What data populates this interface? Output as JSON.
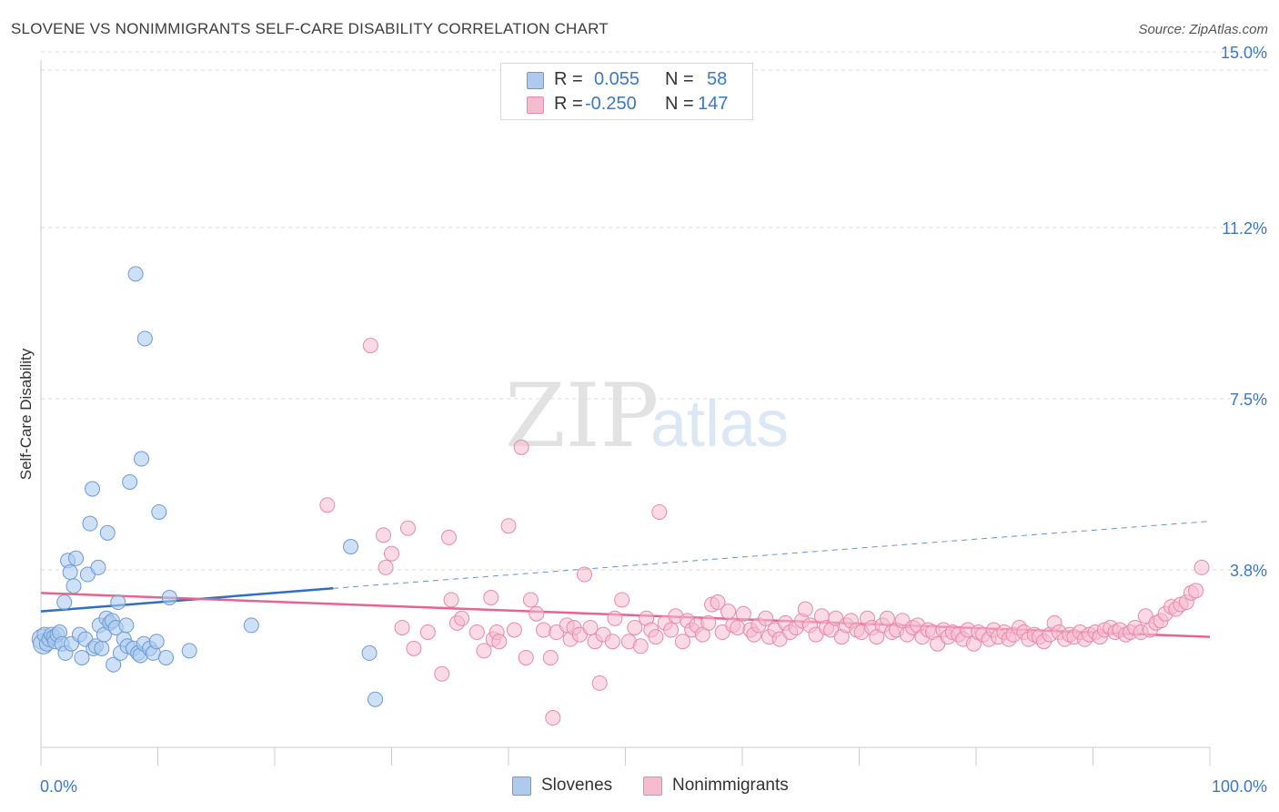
{
  "title": "SLOVENE VS NONIMMIGRANTS SELF-CARE DISABILITY CORRELATION CHART",
  "source": "Source: ZipAtlas.com",
  "watermark": {
    "zip": "ZIP",
    "atlas": "atlas"
  },
  "legend_top": {
    "rows": [
      {
        "r_label": "R =",
        "r_value": "0.055",
        "n_label": "N =",
        "n_value": "58"
      },
      {
        "r_label": "R =",
        "r_value": "-0.250",
        "n_label": "N =",
        "n_value": "147"
      }
    ]
  },
  "legend_bottom": {
    "series_a": "Slovenes",
    "series_b": "Nonimmigrants"
  },
  "colors": {
    "blue_fill": "#aecbef",
    "blue_stroke": "#6b9ad6",
    "blue_line": "#2e6fc5",
    "pink_fill": "#f5bcd0",
    "pink_stroke": "#e889a8",
    "pink_line": "#e8648f",
    "axis_text": "#3a78c9",
    "grid": "#dddddd"
  },
  "chart_data": {
    "type": "scatter",
    "title": "SLOVENE VS NONIMMIGRANTS SELF-CARE DISABILITY CORRELATION CHART",
    "xlabel": "",
    "ylabel": "Self-Care Disability",
    "xlim": [
      0,
      100
    ],
    "ylim": [
      0,
      15.5
    ],
    "x_tick_labels": [
      "0.0%",
      "100.0%"
    ],
    "y_ticks": [
      3.8,
      7.5,
      11.2,
      15.0
    ],
    "y_tick_labels": [
      "3.8%",
      "7.5%",
      "11.2%",
      "15.0%"
    ],
    "grid": true,
    "legend_position": "top-center",
    "series": [
      {
        "name": "Slovenes",
        "color": "#aecbef",
        "r": 0.055,
        "n": 58,
        "trend": {
          "x": [
            0,
            25
          ],
          "y": [
            2.9,
            3.4
          ],
          "extended_x": [
            25,
            100
          ],
          "extended_y": [
            3.4,
            4.85
          ]
        },
        "points": [
          [
            0.1,
            2.3
          ],
          [
            0.2,
            2.2
          ],
          [
            0.3,
            2.4
          ],
          [
            0.5,
            2.2
          ],
          [
            0.7,
            2.3
          ],
          [
            0.9,
            2.4
          ],
          [
            1.1,
            2.35
          ],
          [
            1.2,
            2.25
          ],
          [
            1.4,
            2.4
          ],
          [
            1.6,
            2.45
          ],
          [
            1.8,
            2.2
          ],
          [
            2.0,
            3.1
          ],
          [
            2.1,
            2.0
          ],
          [
            2.3,
            4.0
          ],
          [
            2.5,
            3.75
          ],
          [
            2.6,
            2.2
          ],
          [
            2.8,
            3.45
          ],
          [
            3.0,
            4.05
          ],
          [
            3.3,
            2.4
          ],
          [
            3.5,
            1.9
          ],
          [
            3.8,
            2.3
          ],
          [
            4.0,
            3.7
          ],
          [
            4.2,
            4.8
          ],
          [
            4.4,
            5.55
          ],
          [
            4.5,
            2.1
          ],
          [
            4.7,
            2.15
          ],
          [
            4.9,
            3.85
          ],
          [
            5.0,
            2.6
          ],
          [
            5.2,
            2.1
          ],
          [
            5.4,
            2.4
          ],
          [
            5.6,
            2.75
          ],
          [
            5.7,
            4.6
          ],
          [
            5.9,
            2.65
          ],
          [
            6.1,
            2.7
          ],
          [
            6.2,
            1.75
          ],
          [
            6.4,
            2.55
          ],
          [
            6.6,
            3.1
          ],
          [
            6.8,
            2.0
          ],
          [
            7.1,
            2.3
          ],
          [
            7.3,
            2.6
          ],
          [
            7.4,
            2.15
          ],
          [
            7.6,
            5.7
          ],
          [
            7.9,
            2.1
          ],
          [
            8.1,
            10.2
          ],
          [
            8.3,
            2.0
          ],
          [
            8.5,
            1.95
          ],
          [
            8.6,
            6.2
          ],
          [
            8.8,
            2.2
          ],
          [
            8.9,
            8.8
          ],
          [
            9.3,
            2.1
          ],
          [
            9.6,
            2.0
          ],
          [
            9.9,
            2.25
          ],
          [
            10.1,
            5.05
          ],
          [
            10.7,
            1.9
          ],
          [
            11.0,
            3.2
          ],
          [
            12.7,
            2.05
          ],
          [
            18.0,
            2.6
          ],
          [
            26.5,
            4.3
          ],
          [
            28.1,
            2.0
          ],
          [
            28.6,
            1.0
          ]
        ]
      },
      {
        "name": "Nonimmigrants",
        "color": "#f5bcd0",
        "r": -0.25,
        "n": 147,
        "trend": {
          "x": [
            0,
            100
          ],
          "y": [
            3.3,
            2.35
          ]
        },
        "points": [
          [
            24.5,
            5.2
          ],
          [
            28.2,
            8.65
          ],
          [
            29.3,
            4.55
          ],
          [
            29.5,
            3.85
          ],
          [
            30.0,
            4.15
          ],
          [
            30.9,
            2.55
          ],
          [
            31.4,
            4.7
          ],
          [
            31.9,
            2.1
          ],
          [
            33.1,
            2.45
          ],
          [
            34.3,
            1.55
          ],
          [
            34.9,
            4.5
          ],
          [
            35.1,
            3.15
          ],
          [
            35.6,
            2.65
          ],
          [
            36.0,
            2.75
          ],
          [
            37.3,
            2.45
          ],
          [
            37.9,
            2.05
          ],
          [
            38.5,
            3.2
          ],
          [
            38.7,
            2.3
          ],
          [
            39.0,
            2.45
          ],
          [
            39.2,
            2.25
          ],
          [
            40.0,
            4.75
          ],
          [
            40.5,
            2.5
          ],
          [
            41.1,
            6.45
          ],
          [
            41.5,
            1.9
          ],
          [
            41.9,
            3.15
          ],
          [
            42.4,
            2.85
          ],
          [
            43.0,
            2.5
          ],
          [
            43.6,
            1.9
          ],
          [
            43.8,
            0.6
          ],
          [
            44.1,
            2.45
          ],
          [
            45.0,
            2.6
          ],
          [
            45.3,
            2.3
          ],
          [
            45.6,
            2.55
          ],
          [
            46.1,
            2.4
          ],
          [
            46.5,
            3.7
          ],
          [
            47.0,
            2.55
          ],
          [
            47.4,
            2.25
          ],
          [
            47.8,
            1.35
          ],
          [
            48.1,
            2.4
          ],
          [
            48.9,
            2.25
          ],
          [
            49.1,
            2.75
          ],
          [
            49.7,
            3.15
          ],
          [
            50.3,
            2.25
          ],
          [
            50.8,
            2.55
          ],
          [
            51.3,
            2.15
          ],
          [
            51.8,
            2.75
          ],
          [
            52.2,
            2.5
          ],
          [
            52.6,
            2.35
          ],
          [
            52.9,
            5.05
          ],
          [
            53.4,
            2.65
          ],
          [
            53.9,
            2.5
          ],
          [
            54.3,
            2.8
          ],
          [
            54.9,
            2.25
          ],
          [
            55.3,
            2.7
          ],
          [
            55.7,
            2.5
          ],
          [
            56.1,
            2.6
          ],
          [
            56.6,
            2.4
          ],
          [
            57.1,
            2.65
          ],
          [
            57.4,
            3.05
          ],
          [
            57.9,
            3.1
          ],
          [
            58.3,
            2.45
          ],
          [
            58.8,
            2.9
          ],
          [
            59.2,
            2.6
          ],
          [
            59.6,
            2.55
          ],
          [
            60.1,
            2.85
          ],
          [
            60.7,
            2.5
          ],
          [
            61.0,
            2.4
          ],
          [
            61.4,
            2.6
          ],
          [
            62.0,
            2.75
          ],
          [
            62.3,
            2.35
          ],
          [
            62.8,
            2.5
          ],
          [
            63.2,
            2.3
          ],
          [
            63.7,
            2.65
          ],
          [
            64.1,
            2.45
          ],
          [
            64.6,
            2.55
          ],
          [
            65.1,
            2.7
          ],
          [
            65.4,
            2.95
          ],
          [
            65.8,
            2.6
          ],
          [
            66.3,
            2.4
          ],
          [
            66.8,
            2.8
          ],
          [
            67.2,
            2.55
          ],
          [
            67.6,
            2.5
          ],
          [
            68.0,
            2.75
          ],
          [
            68.5,
            2.35
          ],
          [
            68.9,
            2.6
          ],
          [
            69.3,
            2.7
          ],
          [
            69.8,
            2.5
          ],
          [
            70.2,
            2.45
          ],
          [
            70.7,
            2.75
          ],
          [
            71.1,
            2.55
          ],
          [
            71.5,
            2.35
          ],
          [
            72.0,
            2.6
          ],
          [
            72.4,
            2.75
          ],
          [
            72.8,
            2.45
          ],
          [
            73.2,
            2.5
          ],
          [
            73.7,
            2.7
          ],
          [
            74.1,
            2.4
          ],
          [
            74.6,
            2.55
          ],
          [
            75.0,
            2.6
          ],
          [
            75.4,
            2.35
          ],
          [
            75.9,
            2.5
          ],
          [
            76.3,
            2.45
          ],
          [
            76.7,
            2.2
          ],
          [
            77.2,
            2.5
          ],
          [
            77.6,
            2.35
          ],
          [
            78.0,
            2.45
          ],
          [
            78.5,
            2.4
          ],
          [
            78.9,
            2.3
          ],
          [
            79.3,
            2.5
          ],
          [
            79.8,
            2.2
          ],
          [
            80.2,
            2.45
          ],
          [
            80.6,
            2.4
          ],
          [
            81.1,
            2.3
          ],
          [
            81.5,
            2.5
          ],
          [
            81.9,
            2.35
          ],
          [
            82.4,
            2.45
          ],
          [
            82.8,
            2.3
          ],
          [
            83.2,
            2.4
          ],
          [
            83.7,
            2.55
          ],
          [
            84.1,
            2.45
          ],
          [
            84.5,
            2.3
          ],
          [
            85.0,
            2.4
          ],
          [
            85.4,
            2.35
          ],
          [
            85.8,
            2.25
          ],
          [
            86.3,
            2.4
          ],
          [
            86.7,
            2.65
          ],
          [
            87.1,
            2.45
          ],
          [
            87.6,
            2.3
          ],
          [
            88.0,
            2.4
          ],
          [
            88.4,
            2.35
          ],
          [
            88.9,
            2.45
          ],
          [
            89.3,
            2.3
          ],
          [
            89.7,
            2.4
          ],
          [
            90.2,
            2.45
          ],
          [
            90.6,
            2.35
          ],
          [
            91.0,
            2.5
          ],
          [
            91.5,
            2.55
          ],
          [
            91.9,
            2.45
          ],
          [
            92.3,
            2.5
          ],
          [
            92.8,
            2.4
          ],
          [
            93.2,
            2.45
          ],
          [
            93.6,
            2.55
          ],
          [
            94.1,
            2.45
          ],
          [
            94.5,
            2.8
          ],
          [
            94.9,
            2.5
          ],
          [
            95.4,
            2.65
          ],
          [
            95.8,
            2.7
          ],
          [
            96.2,
            2.85
          ],
          [
            96.7,
            3.0
          ],
          [
            97.1,
            2.95
          ],
          [
            97.5,
            3.05
          ],
          [
            98.0,
            3.1
          ],
          [
            98.4,
            3.3
          ],
          [
            98.8,
            3.35
          ],
          [
            99.3,
            3.85
          ]
        ]
      }
    ]
  }
}
